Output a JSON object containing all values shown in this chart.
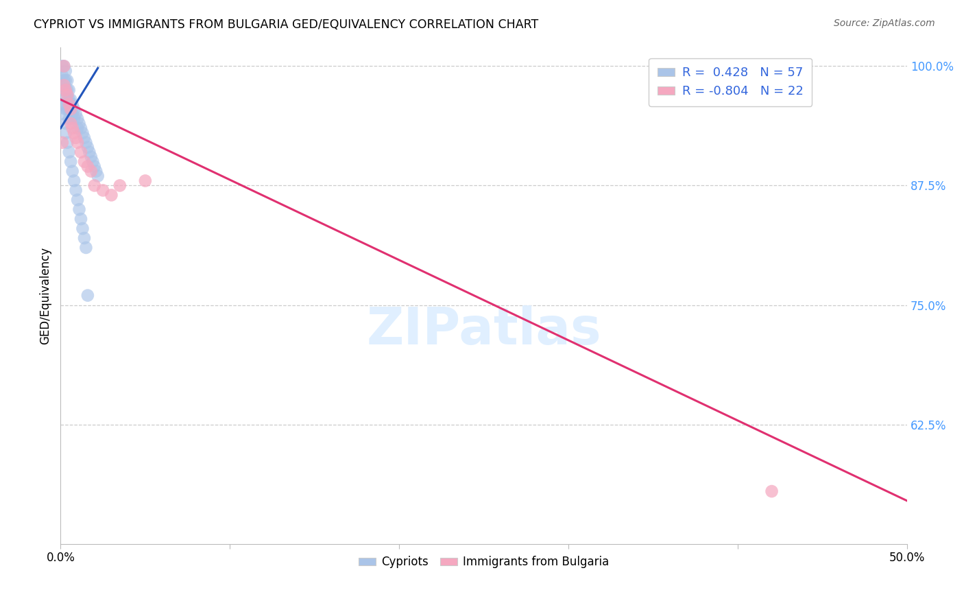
{
  "title": "CYPRIOT VS IMMIGRANTS FROM BULGARIA GED/EQUIVALENCY CORRELATION CHART",
  "source": "Source: ZipAtlas.com",
  "ylabel": "GED/Equivalency",
  "xmin": 0.0,
  "xmax": 0.5,
  "ymin": 0.5,
  "ymax": 1.02,
  "yticks": [
    1.0,
    0.875,
    0.75,
    0.625
  ],
  "ytick_labels": [
    "100.0%",
    "87.5%",
    "75.0%",
    "62.5%"
  ],
  "xticks": [
    0.0,
    0.1,
    0.2,
    0.3,
    0.4,
    0.5
  ],
  "xtick_labels": [
    "0.0%",
    "",
    "",
    "",
    "",
    "50.0%"
  ],
  "blue_R": 0.428,
  "blue_N": 57,
  "pink_R": -0.804,
  "pink_N": 22,
  "blue_color": "#aac4e8",
  "blue_line_color": "#2255bb",
  "pink_color": "#f5a8c0",
  "pink_line_color": "#e03070",
  "legend_label_blue": "Cypriots",
  "legend_label_pink": "Immigrants from Bulgaria",
  "blue_x": [
    0.001,
    0.001,
    0.002,
    0.002,
    0.002,
    0.003,
    0.003,
    0.003,
    0.003,
    0.003,
    0.004,
    0.004,
    0.004,
    0.004,
    0.005,
    0.005,
    0.005,
    0.005,
    0.006,
    0.006,
    0.006,
    0.007,
    0.007,
    0.008,
    0.008,
    0.009,
    0.01,
    0.01,
    0.011,
    0.012,
    0.013,
    0.014,
    0.015,
    0.016,
    0.017,
    0.018,
    0.019,
    0.02,
    0.021,
    0.022,
    0.001,
    0.002,
    0.003,
    0.003,
    0.004,
    0.005,
    0.006,
    0.007,
    0.008,
    0.009,
    0.01,
    0.011,
    0.012,
    0.013,
    0.014,
    0.015,
    0.016
  ],
  "blue_y": [
    1.0,
    0.99,
    1.0,
    0.985,
    0.975,
    0.995,
    0.985,
    0.975,
    0.965,
    0.955,
    0.985,
    0.975,
    0.965,
    0.955,
    0.975,
    0.965,
    0.955,
    0.945,
    0.965,
    0.955,
    0.945,
    0.96,
    0.95,
    0.955,
    0.945,
    0.95,
    0.945,
    0.935,
    0.94,
    0.935,
    0.93,
    0.925,
    0.92,
    0.915,
    0.91,
    0.905,
    0.9,
    0.895,
    0.89,
    0.885,
    0.96,
    0.95,
    0.94,
    0.93,
    0.92,
    0.91,
    0.9,
    0.89,
    0.88,
    0.87,
    0.86,
    0.85,
    0.84,
    0.83,
    0.82,
    0.81,
    0.76
  ],
  "blue_line_x": [
    0.0,
    0.022
  ],
  "blue_line_y": [
    0.935,
    0.998
  ],
  "pink_x": [
    0.002,
    0.002,
    0.003,
    0.004,
    0.005,
    0.006,
    0.006,
    0.007,
    0.008,
    0.009,
    0.01,
    0.012,
    0.014,
    0.016,
    0.018,
    0.02,
    0.025,
    0.03,
    0.035,
    0.05,
    0.42,
    0.001
  ],
  "pink_y": [
    1.0,
    0.98,
    0.975,
    0.97,
    0.96,
    0.955,
    0.94,
    0.935,
    0.93,
    0.925,
    0.92,
    0.91,
    0.9,
    0.895,
    0.89,
    0.875,
    0.87,
    0.865,
    0.875,
    0.88,
    0.555,
    0.92
  ],
  "pink_line_x": [
    0.0,
    0.5
  ],
  "pink_line_y": [
    0.965,
    0.545
  ]
}
